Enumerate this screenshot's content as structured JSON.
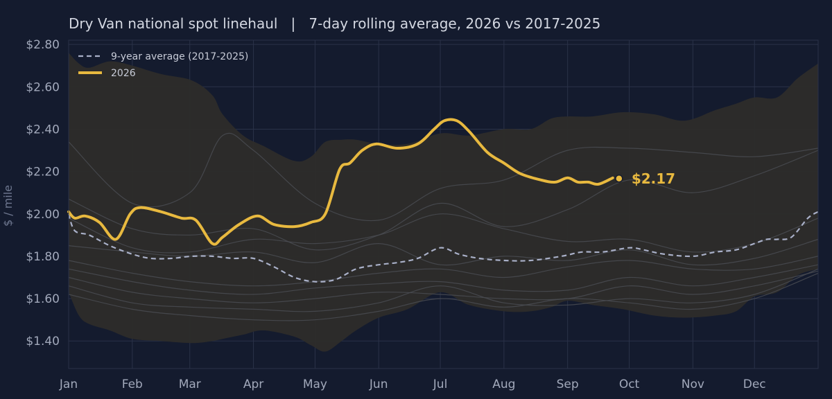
{
  "chart_data": {
    "type": "line",
    "title": "Dry Van national spot linehaul   |   7-day rolling average, 2026 vs 2017-2025",
    "xlabel": "",
    "ylabel": "$ / mile",
    "ylim": [
      1.27,
      2.82
    ],
    "xlim": [
      0,
      365
    ],
    "x_ticks": [
      {
        "label": "Jan",
        "day": 0
      },
      {
        "label": "Feb",
        "day": 31
      },
      {
        "label": "Mar",
        "day": 59
      },
      {
        "label": "Apr",
        "day": 90
      },
      {
        "label": "May",
        "day": 120
      },
      {
        "label": "Jun",
        "day": 151
      },
      {
        "label": "Jul",
        "day": 181
      },
      {
        "label": "Aug",
        "day": 212
      },
      {
        "label": "Sep",
        "day": 243
      },
      {
        "label": "Oct",
        "day": 273
      },
      {
        "label": "Nov",
        "day": 304
      },
      {
        "label": "Dec",
        "day": 334
      }
    ],
    "y_ticks": [
      {
        "label": "$1.40",
        "value": 1.4
      },
      {
        "label": "$1.60",
        "value": 1.6
      },
      {
        "label": "$1.80",
        "value": 1.8
      },
      {
        "label": "$2.00",
        "value": 2.0
      },
      {
        "label": "$2.20",
        "value": 2.2
      },
      {
        "label": "$2.40",
        "value": 2.4
      },
      {
        "label": "$2.60",
        "value": 2.6
      },
      {
        "label": "$2.80",
        "value": 2.8
      }
    ],
    "grid": true,
    "legend_position": "top-left",
    "colors": {
      "background": "#141b2e",
      "grid": "#2a3248",
      "band": "#2d2c2a",
      "history_line": "#4a4c52",
      "average": "#a9b0c8",
      "current": "#e8b93f"
    },
    "band": {
      "x": [
        0,
        5,
        10,
        20,
        31,
        45,
        60,
        70,
        75,
        85,
        95,
        110,
        118,
        125,
        133,
        140,
        151,
        165,
        181,
        195,
        212,
        225,
        235,
        243,
        255,
        270,
        285,
        300,
        315,
        325,
        334,
        345,
        355,
        365
      ],
      "upper": [
        2.76,
        2.71,
        2.69,
        2.72,
        2.7,
        2.66,
        2.63,
        2.56,
        2.47,
        2.37,
        2.32,
        2.25,
        2.27,
        2.34,
        2.35,
        2.35,
        2.33,
        2.33,
        2.38,
        2.37,
        2.4,
        2.4,
        2.45,
        2.46,
        2.46,
        2.48,
        2.47,
        2.44,
        2.49,
        2.52,
        2.55,
        2.55,
        2.64,
        2.71
      ],
      "lower": [
        1.63,
        1.52,
        1.48,
        1.45,
        1.41,
        1.4,
        1.39,
        1.4,
        1.41,
        1.43,
        1.45,
        1.42,
        1.38,
        1.35,
        1.4,
        1.45,
        1.51,
        1.55,
        1.63,
        1.57,
        1.54,
        1.54,
        1.56,
        1.59,
        1.57,
        1.55,
        1.52,
        1.51,
        1.52,
        1.54,
        1.61,
        1.63,
        1.71,
        1.74
      ]
    },
    "history": [
      {
        "x": [
          0,
          31,
          59,
          75,
          90,
          120,
          151,
          181,
          212,
          243,
          273,
          304,
          334,
          365
        ],
        "values": [
          2.34,
          2.05,
          2.1,
          2.37,
          2.3,
          2.05,
          1.97,
          2.12,
          2.16,
          2.3,
          2.31,
          2.29,
          2.27,
          2.31
        ]
      },
      {
        "x": [
          0,
          31,
          59,
          90,
          120,
          151,
          181,
          212,
          243,
          273,
          304,
          334,
          365
        ],
        "values": [
          2.07,
          1.93,
          1.9,
          1.93,
          1.83,
          1.9,
          2.05,
          1.94,
          2.02,
          2.16,
          2.1,
          2.18,
          2.3
        ]
      },
      {
        "x": [
          0,
          31,
          59,
          90,
          120,
          151,
          181,
          212,
          243,
          273,
          304,
          334,
          365
        ],
        "values": [
          1.98,
          1.84,
          1.82,
          1.88,
          1.86,
          1.9,
          2.0,
          1.93,
          1.87,
          1.88,
          1.82,
          1.86,
          1.98
        ]
      },
      {
        "x": [
          0,
          31,
          59,
          90,
          120,
          151,
          181,
          212,
          243,
          273,
          304,
          334,
          365
        ],
        "values": [
          1.85,
          1.82,
          1.8,
          1.82,
          1.77,
          1.86,
          1.76,
          1.8,
          1.78,
          1.83,
          1.76,
          1.79,
          1.88
        ]
      },
      {
        "x": [
          0,
          31,
          59,
          90,
          120,
          151,
          181,
          212,
          243,
          273,
          304,
          334,
          365
        ],
        "values": [
          1.78,
          1.72,
          1.68,
          1.66,
          1.68,
          1.72,
          1.74,
          1.7,
          1.75,
          1.78,
          1.74,
          1.74,
          1.8
        ]
      },
      {
        "x": [
          0,
          31,
          59,
          90,
          120,
          151,
          181,
          212,
          243,
          273,
          304,
          334,
          365
        ],
        "values": [
          1.74,
          1.68,
          1.64,
          1.62,
          1.65,
          1.67,
          1.68,
          1.64,
          1.64,
          1.7,
          1.66,
          1.7,
          1.76
        ]
      },
      {
        "x": [
          0,
          31,
          59,
          90,
          120,
          151,
          181,
          212,
          243,
          273,
          304,
          334,
          365
        ],
        "values": [
          1.7,
          1.63,
          1.6,
          1.58,
          1.6,
          1.63,
          1.62,
          1.6,
          1.6,
          1.66,
          1.62,
          1.66,
          1.73
        ]
      },
      {
        "x": [
          0,
          31,
          59,
          90,
          120,
          151,
          181,
          212,
          243,
          273,
          304,
          334,
          365
        ],
        "values": [
          1.66,
          1.58,
          1.56,
          1.55,
          1.54,
          1.58,
          1.66,
          1.58,
          1.57,
          1.6,
          1.58,
          1.62,
          1.74
        ]
      },
      {
        "x": [
          0,
          31,
          59,
          90,
          120,
          151,
          181,
          212,
          243,
          273,
          304,
          334,
          365
        ],
        "values": [
          1.62,
          1.55,
          1.52,
          1.5,
          1.5,
          1.54,
          1.6,
          1.56,
          1.6,
          1.58,
          1.55,
          1.6,
          1.72
        ]
      }
    ],
    "series": [
      {
        "name": "9-year average (2017-2025)",
        "style": "dashed",
        "x": [
          0,
          3,
          10,
          20,
          31,
          40,
          50,
          60,
          70,
          80,
          90,
          100,
          110,
          120,
          130,
          140,
          151,
          160,
          170,
          181,
          190,
          200,
          212,
          225,
          240,
          250,
          260,
          273,
          280,
          290,
          304,
          315,
          325,
          334,
          340,
          345,
          352,
          360,
          365
        ],
        "values": [
          2.0,
          1.92,
          1.9,
          1.85,
          1.81,
          1.79,
          1.79,
          1.8,
          1.8,
          1.79,
          1.79,
          1.75,
          1.7,
          1.68,
          1.69,
          1.74,
          1.76,
          1.77,
          1.79,
          1.84,
          1.81,
          1.79,
          1.78,
          1.78,
          1.8,
          1.82,
          1.82,
          1.84,
          1.83,
          1.81,
          1.8,
          1.82,
          1.83,
          1.86,
          1.88,
          1.88,
          1.89,
          1.98,
          2.01
        ]
      },
      {
        "name": "2026",
        "style": "solid",
        "x": [
          0,
          3,
          8,
          15,
          23,
          30,
          35,
          45,
          55,
          62,
          70,
          75,
          83,
          92,
          100,
          110,
          118,
          125,
          132,
          137,
          143,
          150,
          160,
          170,
          178,
          183,
          189,
          195,
          204,
          212,
          220,
          230,
          237,
          243,
          248,
          253,
          258,
          265
        ],
        "values": [
          2.01,
          1.98,
          1.99,
          1.96,
          1.88,
          2.0,
          2.03,
          2.01,
          1.98,
          1.97,
          1.86,
          1.89,
          1.95,
          1.99,
          1.95,
          1.94,
          1.96,
          2.0,
          2.21,
          2.24,
          2.3,
          2.33,
          2.31,
          2.33,
          2.4,
          2.44,
          2.44,
          2.39,
          2.29,
          2.24,
          2.19,
          2.16,
          2.15,
          2.17,
          2.15,
          2.15,
          2.14,
          2.17
        ]
      }
    ],
    "annotations": [
      {
        "text": "$2.17",
        "day": 265,
        "value": 2.17
      }
    ]
  }
}
